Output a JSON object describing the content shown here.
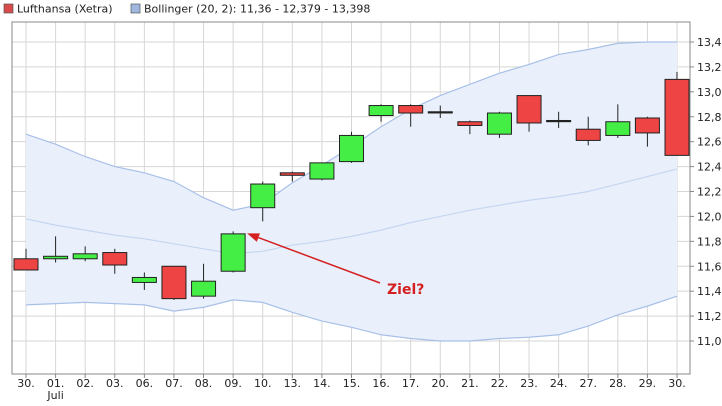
{
  "chart_data": {
    "type": "candlestick",
    "legend": [
      {
        "label": "Lufthansa (Xetra)",
        "color": "#d94a4a"
      },
      {
        "label": "Bollinger (20, 2): 11,36 - 12,379 - 13,398",
        "color": "#9fb8e0"
      }
    ],
    "x": [
      "30.",
      "01.",
      "02.",
      "03.",
      "06.",
      "07.",
      "08.",
      "09.",
      "10.",
      "13.",
      "14.",
      "15.",
      "16.",
      "17.",
      "20.",
      "21.",
      "22.",
      "23.",
      "24.",
      "27.",
      "28.",
      "29.",
      "30."
    ],
    "x_sublabels": {
      "1": "Juli"
    },
    "yticks": [
      "11,0",
      "11,2",
      "11,4",
      "11,6",
      "11,8",
      "12,0",
      "12,2",
      "12,4",
      "12,6",
      "12,8",
      "13,0",
      "13,2",
      "13,4"
    ],
    "ylim": [
      10.8,
      13.5
    ],
    "grid": true,
    "legend_position": "top-left",
    "candles": [
      {
        "open": 11.66,
        "close": 11.57,
        "high": 11.74,
        "low": 11.57
      },
      {
        "open": 11.66,
        "close": 11.68,
        "high": 11.84,
        "low": 11.63
      },
      {
        "open": 11.66,
        "close": 11.7,
        "high": 11.76,
        "low": 11.64
      },
      {
        "open": 11.71,
        "close": 11.61,
        "high": 11.74,
        "low": 11.54
      },
      {
        "open": 11.47,
        "close": 11.51,
        "high": 11.55,
        "low": 11.41
      },
      {
        "open": 11.6,
        "close": 11.34,
        "high": 11.6,
        "low": 11.33
      },
      {
        "open": 11.36,
        "close": 11.48,
        "high": 11.62,
        "low": 11.34
      },
      {
        "open": 11.56,
        "close": 11.86,
        "high": 11.88,
        "low": 11.55
      },
      {
        "open": 12.07,
        "close": 12.26,
        "high": 12.28,
        "low": 11.96
      },
      {
        "open": 12.35,
        "close": 12.33,
        "high": 12.36,
        "low": 12.28
      },
      {
        "open": 12.3,
        "close": 12.43,
        "high": 12.43,
        "low": 12.29
      },
      {
        "open": 12.44,
        "close": 12.65,
        "high": 12.68,
        "low": 12.43
      },
      {
        "open": 12.81,
        "close": 12.89,
        "high": 12.9,
        "low": 12.76
      },
      {
        "open": 12.89,
        "close": 12.83,
        "high": 12.9,
        "low": 12.72
      },
      {
        "open": 12.84,
        "close": 12.84,
        "high": 12.89,
        "low": 12.79
      },
      {
        "open": 12.76,
        "close": 12.73,
        "high": 12.77,
        "low": 12.66
      },
      {
        "open": 12.66,
        "close": 12.83,
        "high": 12.84,
        "low": 12.63
      },
      {
        "open": 12.97,
        "close": 12.75,
        "high": 12.97,
        "low": 12.68
      },
      {
        "open": 12.77,
        "close": 12.77,
        "high": 12.84,
        "low": 12.71
      },
      {
        "open": 12.7,
        "close": 12.61,
        "high": 12.8,
        "low": 12.57
      },
      {
        "open": 12.65,
        "close": 12.76,
        "high": 12.9,
        "low": 12.63
      },
      {
        "open": 12.79,
        "close": 12.67,
        "high": 12.8,
        "low": 12.56
      },
      {
        "open": 13.1,
        "close": 12.49,
        "high": 13.16,
        "low": 12.49
      }
    ],
    "bollinger": {
      "upper": [
        12.66,
        12.58,
        12.48,
        12.4,
        12.35,
        12.28,
        12.15,
        12.05,
        12.1,
        12.27,
        12.41,
        12.56,
        12.72,
        12.86,
        12.97,
        13.06,
        13.15,
        13.22,
        13.3,
        13.34,
        13.39,
        13.4,
        13.4
      ],
      "middle": [
        11.98,
        11.93,
        11.89,
        11.85,
        11.82,
        11.78,
        11.74,
        11.7,
        11.72,
        11.77,
        11.8,
        11.84,
        11.89,
        11.95,
        12.0,
        12.05,
        12.09,
        12.13,
        12.16,
        12.2,
        12.26,
        12.32,
        12.38
      ],
      "lower": [
        11.29,
        11.3,
        11.31,
        11.3,
        11.29,
        11.24,
        11.27,
        11.33,
        11.31,
        11.23,
        11.16,
        11.11,
        11.05,
        11.02,
        11.0,
        11.0,
        11.02,
        11.03,
        11.05,
        11.12,
        11.21,
        11.28,
        11.36
      ]
    },
    "annotation": {
      "text": "Ziel?",
      "target_index": 7,
      "target_value": 11.88
    },
    "colors": {
      "up": "#44ee44",
      "down": "#ee4444",
      "band_fill": "#e9f0fb",
      "band_line": "#a8c0e8",
      "middle_line": "#c4d6f1",
      "grid": "#d6d6d6",
      "arrow": "#d42020"
    }
  }
}
